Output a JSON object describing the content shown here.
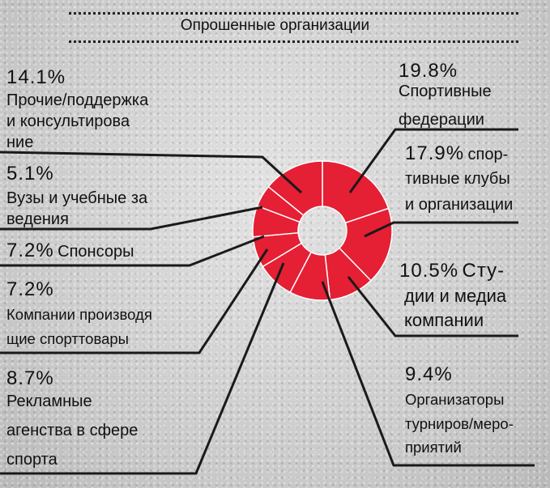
{
  "chart_data": {
    "type": "pie",
    "title": "Опрошенные организации",
    "slices": [
      {
        "value": 19.8,
        "pct_label": "19.8%",
        "lines": [
          "Спортивные",
          "федерации"
        ]
      },
      {
        "value": 17.9,
        "pct_label": "17.9%",
        "lines": [
          "спор-",
          "тивные клубы",
          "и организации"
        ]
      },
      {
        "value": 10.5,
        "pct_label": "10.5%",
        "lines": [
          "Сту-",
          "дии и медиа",
          "компании"
        ]
      },
      {
        "value": 9.4,
        "pct_label": "9.4%",
        "lines": [
          "Организаторы",
          "турниров/меро-",
          "приятий"
        ]
      },
      {
        "value": 8.7,
        "pct_label": "8.7%",
        "lines": [
          "Рекламные",
          "агенства в сфере",
          "спорта"
        ]
      },
      {
        "value": 7.2,
        "pct_label": "7.2%",
        "lines": [
          "Компании производя",
          "щие спорттовары"
        ]
      },
      {
        "value": 7.2,
        "pct_label": "7.2%",
        "lines": [
          "Спонсоры"
        ]
      },
      {
        "value": 5.1,
        "pct_label": "5.1%",
        "lines": [
          "Вузы и учебные за",
          "ведения"
        ]
      },
      {
        "value": 14.1,
        "pct_label": "14.1%",
        "lines": [
          "Прочие/поддержка",
          "и консультирова",
          "ние"
        ]
      }
    ],
    "colors": {
      "slice": "#e51f34",
      "separator": "#ffffff",
      "leader": "#1a1a1a"
    }
  }
}
